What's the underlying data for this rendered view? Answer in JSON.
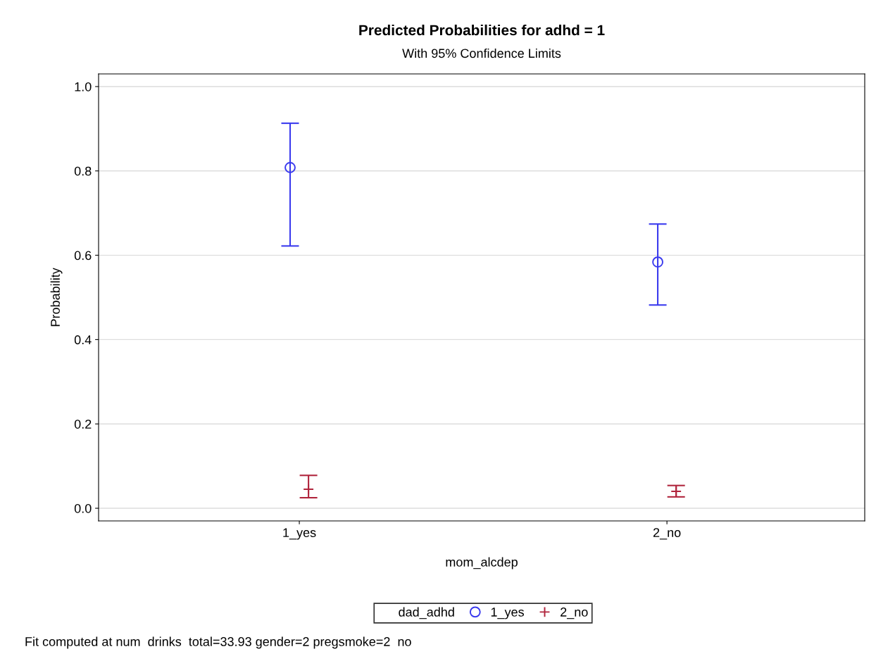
{
  "chart_data": {
    "type": "scatter",
    "title": "Predicted Probabilities for adhd = 1",
    "subtitle": "With 95% Confidence Limits",
    "xlabel": "mom_alcdep",
    "ylabel": "Probability",
    "legend_title": "dad_adhd",
    "categories": [
      "1_yes",
      "2_no"
    ],
    "series": [
      {
        "name": "1_yes",
        "color": "#3a3aee",
        "marker": "circle",
        "values": [
          0.808,
          0.584
        ],
        "errors": [
          [
            0.622,
            0.913
          ],
          [
            0.482,
            0.674
          ]
        ]
      },
      {
        "name": "2_no",
        "color": "#b0243c",
        "marker": "cross",
        "values": [
          0.045,
          0.04
        ],
        "errors": [
          [
            0.025,
            0.078
          ],
          [
            0.027,
            0.054
          ]
        ]
      }
    ],
    "ylim": [
      -0.03,
      1.03
    ],
    "yticks": [
      {
        "value": 0,
        "label": "0.0"
      },
      0.2,
      0.4,
      0.6,
      0.8,
      {
        "value": 1,
        "label": "1.0"
      }
    ],
    "grid": "y",
    "legend": "bottom",
    "annotations": [
      "Fit computed at num  drinks  total=33.93 gender=2 pregsmoke=2  no"
    ]
  }
}
